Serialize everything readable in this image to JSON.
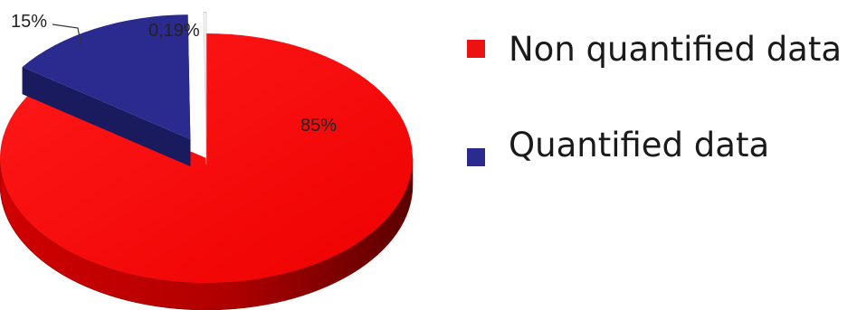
{
  "chart_data": {
    "type": "pie",
    "style": "3d",
    "slices": [
      {
        "label": "Non quantified data",
        "value": 85,
        "value_label": "85%",
        "color": "#ee1111",
        "exploded": false
      },
      {
        "label": "Quantified data",
        "value": 15,
        "value_label": "15%",
        "color": "#2b2b8f",
        "exploded": true
      },
      {
        "label": "",
        "value": 0.19,
        "value_label": "0,19%",
        "color": "#ffffff",
        "exploded": true
      }
    ],
    "legend": {
      "placement": "right",
      "items": [
        {
          "label": "Non quantified data",
          "color": "#ee1111"
        },
        {
          "label": "Quantified data",
          "color": "#2b2b8f"
        }
      ]
    }
  }
}
